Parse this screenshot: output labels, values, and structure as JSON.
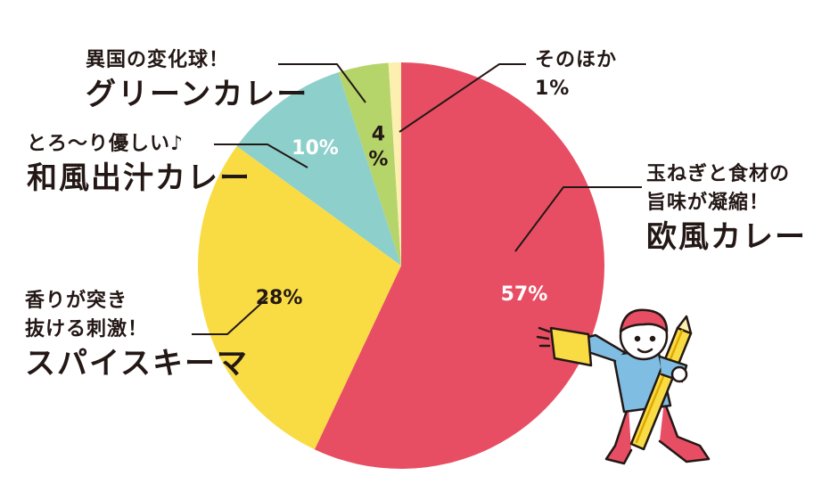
{
  "chart_data": {
    "type": "pie",
    "slices": [
      {
        "label": "欧風カレー",
        "value": 57,
        "value_label": "57%",
        "color": "#e84e63",
        "pct_color": "#ffffff",
        "callout": [
          "玉ねぎと食材の",
          "旨味が凝縮！"
        ],
        "name": "欧風カレー"
      },
      {
        "label": "スパイスキーマ",
        "value": 28,
        "value_label": "28%",
        "color": "#f9dc44",
        "pct_color": "#231815",
        "callout": [
          "香りが突き",
          "抜ける刺激！"
        ],
        "name": "スパイスキーマ"
      },
      {
        "label": "和風出汁カレー",
        "value": 10,
        "value_label": "10%",
        "color": "#8dcfcb",
        "pct_color": "#ffffff",
        "callout": [
          "とろ〜り優しい♪"
        ],
        "name": "和風出汁カレー"
      },
      {
        "label": "グリーンカレー",
        "value": 4,
        "value_label": "4%",
        "color": "#b5d46a",
        "pct_color": "#231815",
        "callout": [
          "異国の変化球！"
        ],
        "name": "グリーンカレー"
      },
      {
        "label": "そのほか",
        "value": 1,
        "value_label": "1%",
        "color": "#fcefb0",
        "pct_color": "#231815",
        "callout": [],
        "name": "そのほか"
      }
    ]
  },
  "illustration": {
    "description_icon": "megaphone-pencil-character-icon"
  }
}
